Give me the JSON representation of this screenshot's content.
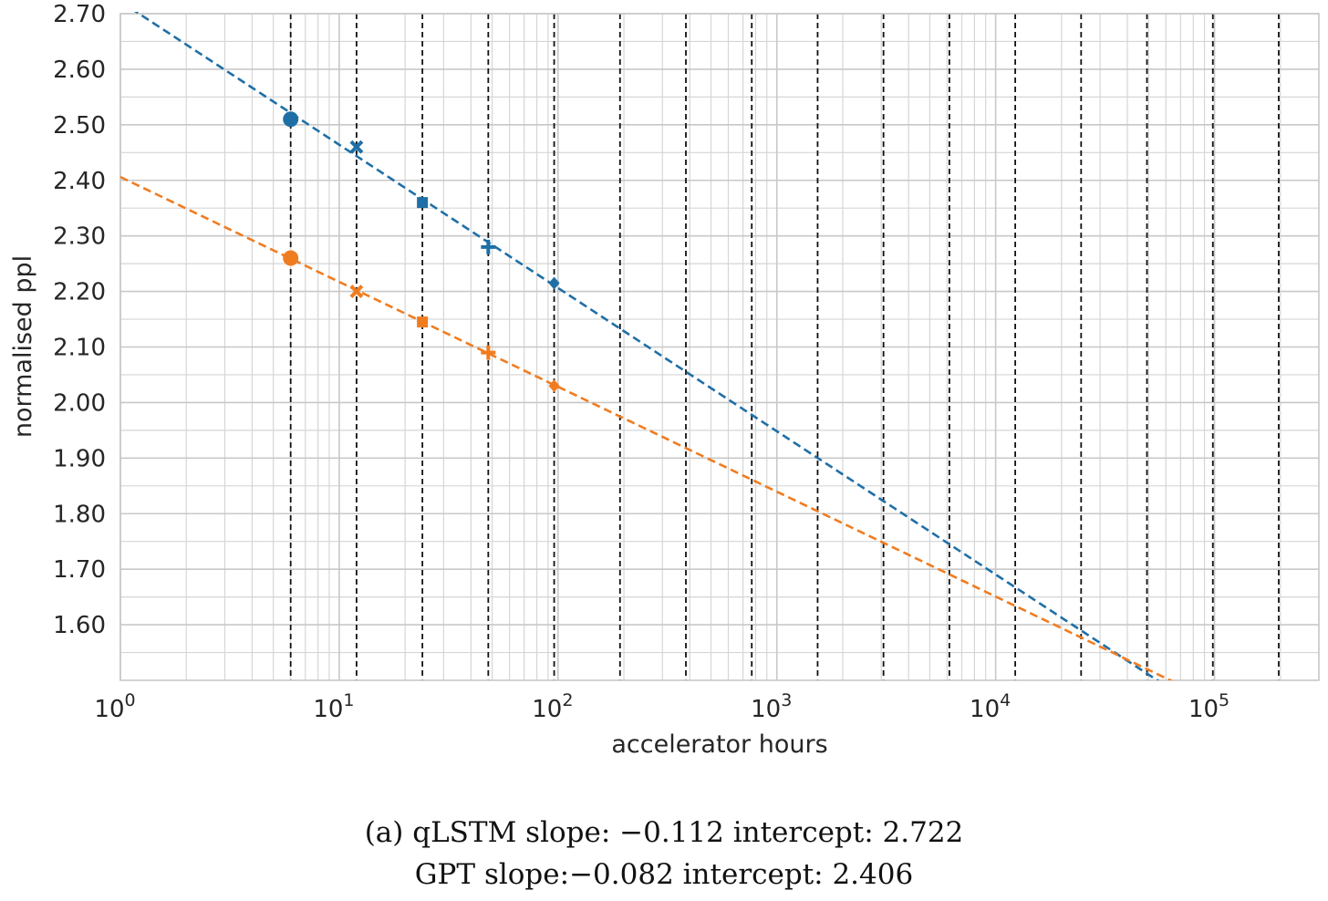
{
  "chart_data": {
    "type": "line",
    "xlabel": "accelerator hours",
    "ylabel": "normalised ppl",
    "xscale": "log",
    "xlim": [
      1,
      300000
    ],
    "ylim": [
      1.5,
      2.7
    ],
    "yticks": [
      "1.60",
      "1.70",
      "1.80",
      "1.90",
      "2.00",
      "2.10",
      "2.20",
      "2.30",
      "2.40",
      "2.50",
      "2.60",
      "2.70"
    ],
    "xticks": [
      {
        "base": "10",
        "exp": "0"
      },
      {
        "base": "10",
        "exp": "1"
      },
      {
        "base": "10",
        "exp": "2"
      },
      {
        "base": "10",
        "exp": "3"
      },
      {
        "base": "10",
        "exp": "4"
      },
      {
        "base": "10",
        "exp": "5"
      }
    ],
    "grid": true,
    "legend": "none",
    "vlines": [
      6,
      12,
      24,
      48,
      96,
      192,
      384,
      768,
      1536,
      3072,
      6144,
      12288,
      24576,
      49152,
      98304,
      196608
    ],
    "series": [
      {
        "color": "#1f6fa6",
        "slope": -0.112,
        "intercept": 2.722,
        "points": [
          {
            "x": 6,
            "y": 2.51,
            "marker": "circle"
          },
          {
            "x": 12,
            "y": 2.46,
            "marker": "x"
          },
          {
            "x": 24,
            "y": 2.36,
            "marker": "square"
          },
          {
            "x": 48,
            "y": 2.28,
            "marker": "plus"
          },
          {
            "x": 96,
            "y": 2.215,
            "marker": "diamond"
          }
        ]
      },
      {
        "color": "#f07c20",
        "slope": -0.082,
        "intercept": 2.406,
        "points": [
          {
            "x": 6,
            "y": 2.26,
            "marker": "circle"
          },
          {
            "x": 12,
            "y": 2.2,
            "marker": "x"
          },
          {
            "x": 24,
            "y": 2.145,
            "marker": "square"
          },
          {
            "x": 48,
            "y": 2.09,
            "marker": "plus"
          },
          {
            "x": 96,
            "y": 2.03,
            "marker": "diamond"
          }
        ]
      }
    ],
    "caption": [
      "(a) qLSTM slope: −0.112 intercept: 2.722",
      "GPT slope:−0.082 intercept: 2.406"
    ]
  }
}
